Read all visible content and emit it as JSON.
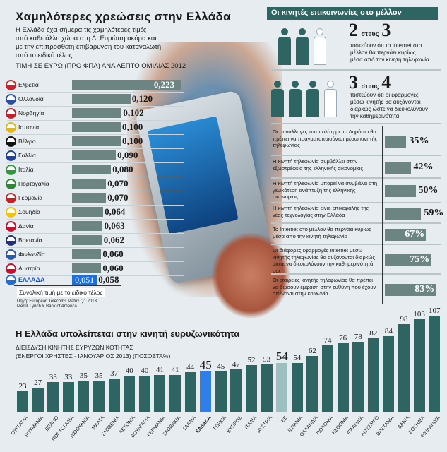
{
  "left": {
    "title": "Χαμηλότερες χρεώσεις στην Ελλάδα",
    "intro": [
      "Η Ελλάδα έχει σήμερα τις χαμηλότερες τιμές",
      "από κάθε άλλη χώρα στη Δ. Ευρώπη ακόμα και",
      "με την επιπρόσθετη επιβάρυνση του καταναλωτή",
      "από το ειδικό τέλος"
    ],
    "subtitle": "ΤΙΜΗ ΣΕ ΕΥΡΩ (ΠΡΟ ΦΠΑ) ΑΝΑ ΛΕΠΤΟ ΟΜΙΛΙΑΣ 2012",
    "prices": [
      {
        "name": "Ελβετία",
        "value": 0.223,
        "label": "0,223",
        "color": "#d0202a"
      },
      {
        "name": "Ολλανδία",
        "value": 0.12,
        "label": "0,120",
        "color": "#2a4fa8"
      },
      {
        "name": "Νορβηγία",
        "value": 0.102,
        "label": "0,102",
        "color": "#c8202a"
      },
      {
        "name": "Ισπανία",
        "value": 0.1,
        "label": "0,100",
        "color": "#e8b800"
      },
      {
        "name": "Βέλγιο",
        "value": 0.1,
        "label": "0,100",
        "color": "#111111"
      },
      {
        "name": "Γαλλία",
        "value": 0.09,
        "label": "0,090",
        "color": "#1f44a0"
      },
      {
        "name": "Ιταλία",
        "value": 0.08,
        "label": "0,080",
        "color": "#2a9a3a"
      },
      {
        "name": "Πορτογαλία",
        "value": 0.07,
        "label": "0,070",
        "color": "#2a8a30"
      },
      {
        "name": "Γερμανία",
        "value": 0.07,
        "label": "0,070",
        "color": "#cc1f1f"
      },
      {
        "name": "Σουηδία",
        "value": 0.064,
        "label": "0,064",
        "color": "#f0c400"
      },
      {
        "name": "Δανία",
        "value": 0.063,
        "label": "0,063",
        "color": "#c8102e"
      },
      {
        "name": "Βρετανία",
        "value": 0.062,
        "label": "0,062",
        "color": "#23307a"
      },
      {
        "name": "Φινλανδία",
        "value": 0.06,
        "label": "0,060",
        "color": "#2a5aa8"
      },
      {
        "name": "Αυστρία",
        "value": 0.06,
        "label": "0,060",
        "color": "#c8102e"
      }
    ],
    "greece": {
      "name": "ΕΛΛΑΔΑ",
      "value": 0.051,
      "label": "0,051",
      "total": 0.058,
      "total_label": "0,058",
      "color": "#1e6fd9"
    },
    "note": "Συνολική τιμή με το ειδικό τέλος",
    "source": [
      "Πηγή: European Telecoms Matrix Q1 2013,",
      "Merrill Lynch & Bank of America"
    ]
  },
  "right": {
    "title": "Οι κινητές επικοινωνίες στο μέλλον",
    "stat1": {
      "a": "2",
      "mid": "στους",
      "b": "3",
      "text": [
        "πιστεύουν ότι το Internet στο",
        "μέλλον θα περνάει κυρίως",
        "μέσα από την κινητή τηλεφωνία"
      ]
    },
    "stat2": {
      "a": "3",
      "mid": "στους",
      "b": "4",
      "text": [
        "πιστεύουν ότι οι εφαρμογές",
        "μέσω κινητής θα αυξάνονται",
        "διαρκώς ώστε να διευκολύνουν",
        "την καθημερινότητα"
      ]
    },
    "survey": [
      {
        "text": "Οι συναλλαγές του πολίτη με το Δημόσιο θα πρέπει να πραγματοποιούνται μέσω κινητής τηλεφωνίας",
        "pct": 35,
        "label": "35%"
      },
      {
        "text": "Η κινητή τηλεφωνία συμβάλλει στην εξωστρέφεια της ελληνικής οικονομίας",
        "pct": 42,
        "label": "42%"
      },
      {
        "text": "Η κινητή τηλεφωνία μπορεί να συμβάλει στη γενικότερη ανάπτυξη της ελληνικής οικονομίας",
        "pct": 50,
        "label": "50%"
      },
      {
        "text": "Η κινητή τηλεφωνία είναι επικεφαλής της νέας τεχνολογίας στην Ελλάδα",
        "pct": 59,
        "label": "59%"
      },
      {
        "text": "Το Internet στο μέλλον θα περνάει κυρίως μέσα από την κινητή τηλεφωνία",
        "pct": 67,
        "label": "67%"
      },
      {
        "text": "Οι διάφορες εφαρμογές Internet μέσω κινητής τηλεφωνίας θα αυξάνονται διαρκώς ώστε να διευκολύνουν την καθημερινότητά μας",
        "pct": 75,
        "label": "75%"
      },
      {
        "text": "Οι εταιρείες κινητής τηλεφωνίας θα πρέπει να δώσουν έμφαση στην ευθύνη που έχουν απέναντι στην κοινωνία",
        "pct": 83,
        "label": "83%"
      }
    ]
  },
  "chart_data": {
    "type": "bar",
    "title": "Η Ελλάδα υπολείπεται στην κινητή ευρυζωνικότητα",
    "subtitle": [
      "ΔΙΕΙΣΔΥΣΗ ΚΙΝΗΤΗΣ ΕΥΡΥΖΩΝΙΚΟΤΗΤΑΣ",
      "(ΕΝΕΡΓΟΙ ΧΡΗΣΤΕΣ - ΙΑΝΟΥΑΡΙΟΣ 2013) (ΠΟΣΟΣΤΑ%)"
    ],
    "categories": [
      "ΟΥΓΓΑΡΙΑ",
      "ΡΟΥΜΑΝΙΑ",
      "ΒΕΛΓΙΟ",
      "ΠΟΡΤΟΓΑΛΙΑ",
      "ΛΙΘΟΥΑΝΙΑ",
      "ΜΑΛΤΑ",
      "ΣΛΟΒΕΝΙΑ",
      "ΛΕΤΟΝΙΑ",
      "ΒΟΥΛΓΑΡΙΑ",
      "ΓΕΡΜΑΝΙΑ",
      "ΣΛΟΒΑΚΙΑ",
      "ΓΑΛΛΙΑ",
      "ΕΛΛΑΔΑ",
      "ΤΣΕΧΙΑ",
      "ΚΥΠΡΟΣ",
      "ΙΤΑΛΙΑ",
      "ΑΥΣΤΡΙΑ",
      "ΕΕ",
      "ΙΣΠΑΝΙΑ",
      "ΟΛΛΑΝΔΙΑ",
      "ΠΟΛΩΝΙΑ",
      "ΕΣΘΟΝΙΑ",
      "ΙΡΛΑΝΔΙΑ",
      "ΛΟΥΞ/ΡΓΟ",
      "ΒΡΕΤΑΝΙΑ",
      "ΔΑΝΙΑ",
      "ΣΟΥΗΔΙΑ",
      "ΦΙΝΛΑΝΔΙΑ"
    ],
    "values": [
      23,
      27,
      33,
      33,
      35,
      35,
      37,
      40,
      40,
      41,
      41,
      44,
      45,
      45,
      47,
      52,
      53,
      54,
      54,
      62,
      74,
      76,
      78,
      82,
      84,
      98,
      103,
      107
    ],
    "highlight": {
      "ΕΛΛΑΔΑ": "#2f7fe8",
      "ΕΕ": "#9cc0c0"
    },
    "bar_color": "#2e6462",
    "ylim": [
      0,
      110
    ]
  }
}
